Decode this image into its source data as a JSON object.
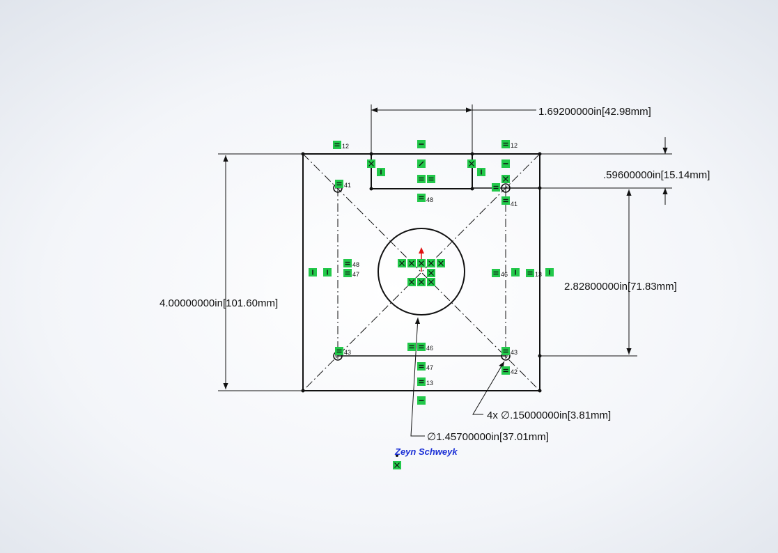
{
  "dimensions": {
    "top_width": "1.69200000in",
    "top_width_mm": "42.98mm",
    "top_offset": ".59600000in",
    "top_offset_mm": "15.14mm",
    "hole_spacing": "2.82800000in",
    "hole_spacing_mm": "71.83mm",
    "overall_height": "4.00000000in",
    "overall_height_mm": "101.60mm",
    "small_holes_prefix": "4x",
    "small_holes_dia": ".15000000in",
    "small_holes_dia_mm": "3.81mm",
    "center_hole_dia": "1.45700000in",
    "center_hole_dia_mm": "37.01mm",
    "diameter_symbol": "∅"
  },
  "relation_numbers": {
    "r12a": "12",
    "r12b": "12",
    "r41a": "41",
    "r41b": "41",
    "r48a": "48",
    "r48b": "48",
    "r47a": "47",
    "r47b": "47",
    "r46a": "46",
    "r46b": "46",
    "r13a": "13",
    "r13b": "13",
    "r43a": "43",
    "r43b": "43",
    "r42": "42"
  },
  "author": "Zeyn Schweyk",
  "colors": {
    "sketch_line": "#111111",
    "relation_green": "#22c84a",
    "origin_red": "#e01010",
    "author_blue": "#1a2fd6"
  }
}
